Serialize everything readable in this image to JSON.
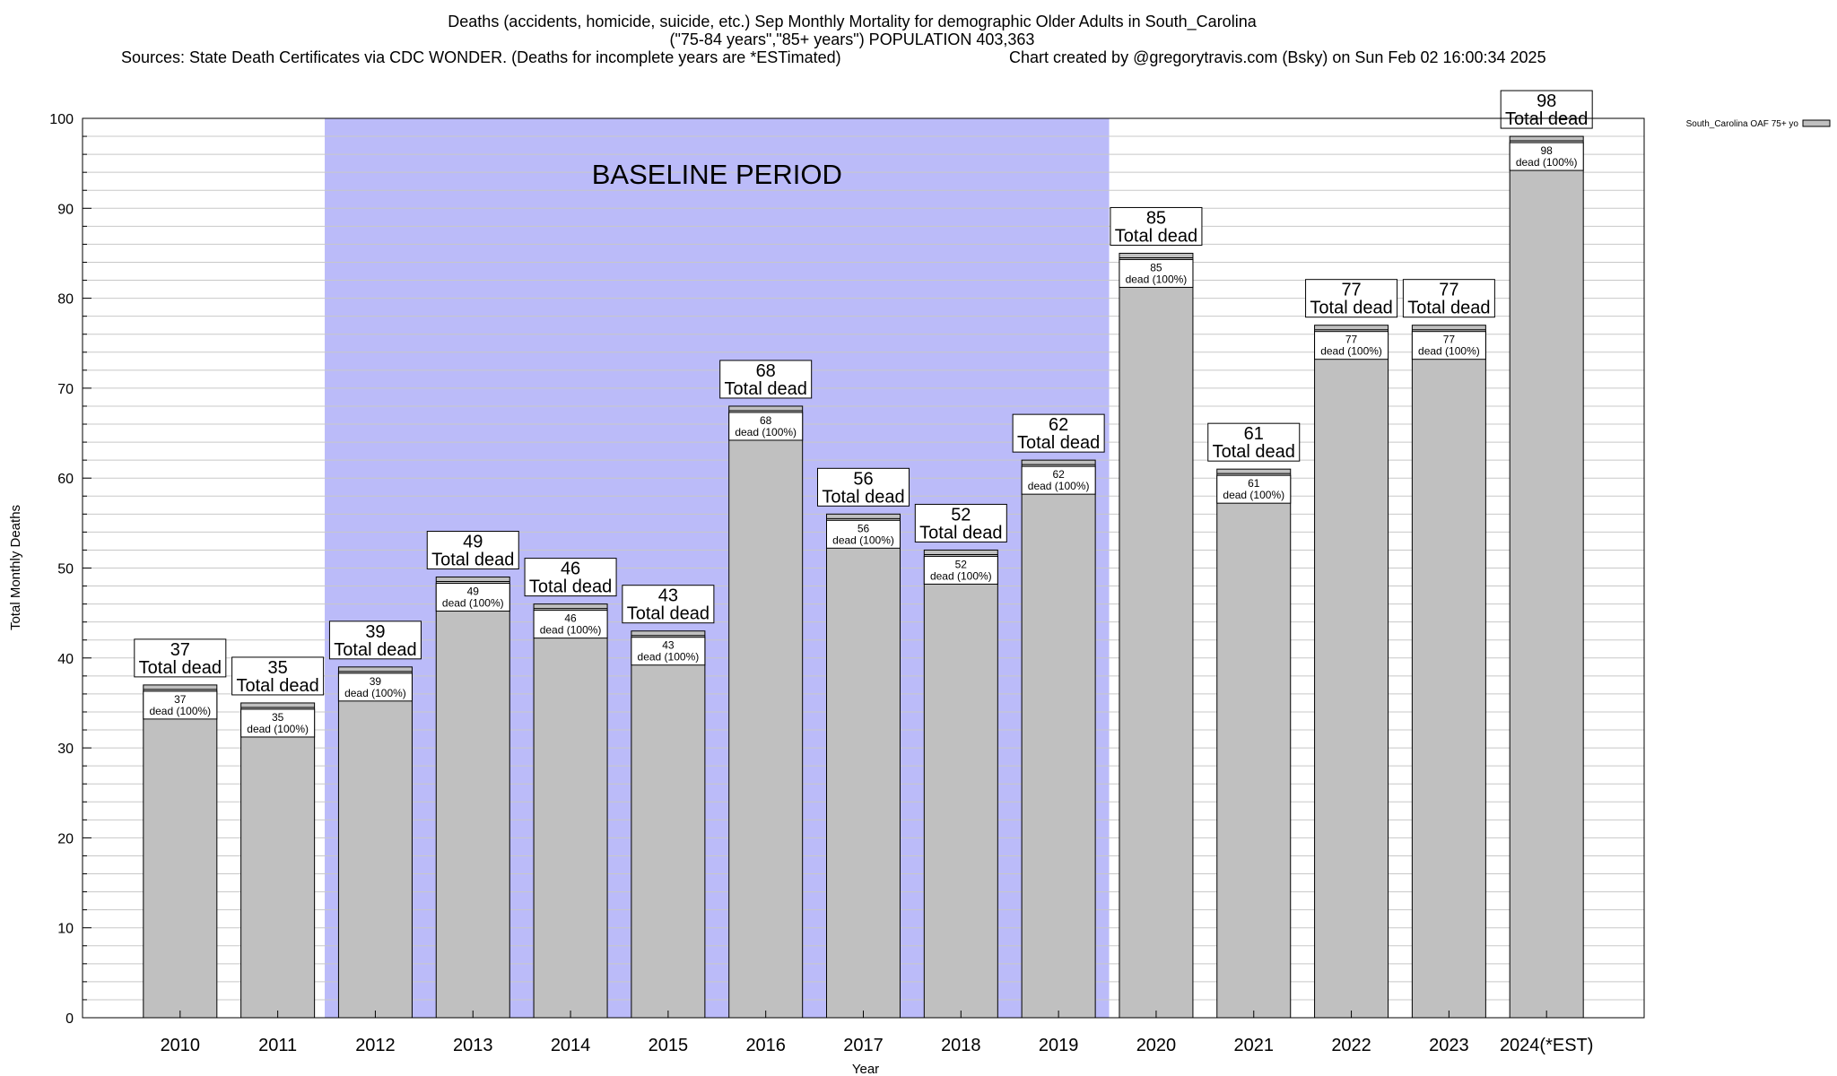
{
  "header": {
    "line1": "Deaths (accidents, homicide, suicide, etc.) Sep Monthly Mortality for demographic Older Adults in South_Carolina",
    "line2": "(\"75-84 years\",\"85+ years\") POPULATION 403,363",
    "sources": "Sources: State Death Certificates via CDC WONDER. (Deaths for incomplete years are *ESTimated)",
    "credit": "Chart created by @gregorytravis.com (Bsky) on Sun Feb 02 16:00:34 2025"
  },
  "colors": {
    "bar": "#c0c0c0",
    "baseline_band": "#bbbbf9",
    "grid": "#c8c8c8"
  },
  "chart_data": {
    "type": "bar",
    "title": "Deaths (accidents, homicide, suicide, etc.) Sep Monthly Mortality for demographic Older Adults in South_Carolina",
    "xlabel": "Year",
    "ylabel": "Total Monthly Deaths",
    "ylim": [
      0,
      100
    ],
    "yticks": [
      0,
      10,
      20,
      30,
      40,
      50,
      60,
      70,
      80,
      90,
      100
    ],
    "grid": true,
    "legend_position": "top-right",
    "categories": [
      "2010",
      "2011",
      "2012",
      "2013",
      "2014",
      "2015",
      "2016",
      "2017",
      "2018",
      "2019",
      "2020",
      "2021",
      "2022",
      "2023",
      "2024(*EST)"
    ],
    "series": [
      {
        "name": "South_Carolina OAF 75+ yo",
        "values": [
          37,
          35,
          39,
          49,
          46,
          43,
          68,
          56,
          52,
          62,
          85,
          61,
          77,
          77,
          98
        ]
      }
    ],
    "total_label_text": "Total dead",
    "inner_label_text": "dead (100%)",
    "baseline_period": {
      "label": "BASELINE PERIOD",
      "from": "2012",
      "to": "2019"
    }
  }
}
